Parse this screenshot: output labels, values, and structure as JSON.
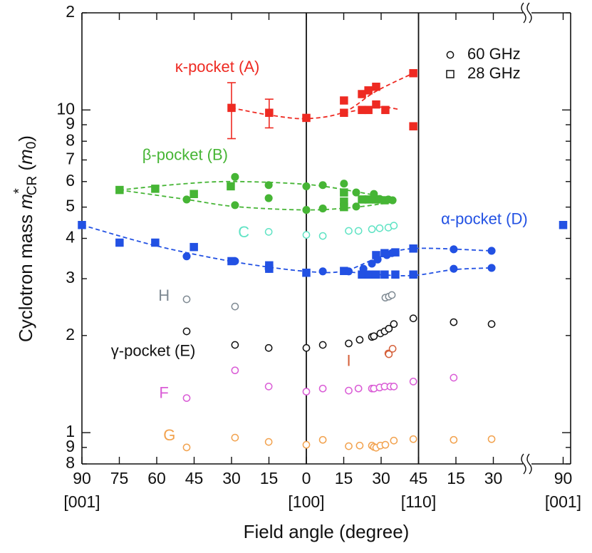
{
  "chart_data": {
    "type": "scatter",
    "log_y": true,
    "xlabel": "Field angle (degree)",
    "ylabel": {
      "text": "Cyclotron mass ",
      "symbol": "m",
      "superscript": "*",
      "subscript": "CR",
      "unit_open": " (",
      "unit": "m",
      "unit_subscript": "0",
      "unit_close": ")"
    },
    "xlim": [
      0,
      196
    ],
    "ylim": [
      0.8,
      20
    ],
    "xticks": [
      {
        "value": 0,
        "label": "90"
      },
      {
        "value": 15,
        "label": "75"
      },
      {
        "value": 30,
        "label": "60"
      },
      45,
      {
        "value": 60,
        "label": "30"
      },
      {
        "value": 75,
        "label": "15"
      },
      {
        "value": 90,
        "label": "0"
      },
      {
        "value": 105,
        "label": "15"
      },
      {
        "value": 120,
        "label": "30"
      },
      {
        "value": 135,
        "label": "45"
      },
      {
        "value": 150,
        "label": "15"
      },
      {
        "value": 165,
        "label": "30"
      },
      {
        "value": 193,
        "label": "90"
      }
    ],
    "xtick_sublabels": [
      {
        "value": 0,
        "label": "[001]"
      },
      {
        "value": 90,
        "label": "[100]"
      },
      {
        "value": 135,
        "label": "[110]"
      },
      {
        "value": 193,
        "label": "[001]"
      }
    ],
    "yticks": [
      {
        "value": 0.8,
        "label": "8"
      },
      {
        "value": 0.9,
        "label": "9"
      },
      1,
      2,
      3,
      4,
      5,
      6,
      7,
      8,
      9,
      10,
      {
        "value": 20,
        "label": "2"
      }
    ],
    "reference_lines": [
      90,
      135
    ],
    "legend": [
      {
        "label": "60 GHz",
        "marker": "circle"
      },
      {
        "label": "28 GHz",
        "marker": "square"
      }
    ],
    "legend_position": "upper right",
    "series": [
      {
        "color": "#ee2a22",
        "marker": "square",
        "filled": true,
        "x": [
          60,
          75.1,
          90,
          105.1,
          105.1,
          112.3,
          114.9,
          118,
          112.3,
          114.9,
          118,
          121.7,
          132.9,
          132.9
        ],
        "values": [
          10.15,
          9.8,
          9.45,
          9.8,
          10.7,
          11.2,
          11.5,
          11.8,
          10.0,
          10.0,
          10.4,
          10.0,
          13.0,
          8.9
        ],
        "errors": [
          2.0,
          1.0,
          null,
          null,
          null,
          null,
          null,
          null,
          null,
          null,
          null,
          null,
          null,
          null
        ]
      },
      {
        "color": "#46b535",
        "marker": "square",
        "filled": true,
        "x": [
          15.1,
          29.4,
          44.9,
          59.7,
          105.1,
          105.1,
          105.1,
          112.3,
          115,
          118,
          121.4
        ],
        "values": [
          5.65,
          5.7,
          5.49,
          5.8,
          5.55,
          5.2,
          5.0,
          5.28,
          5.28,
          5.28,
          5.25
        ]
      },
      {
        "color": "#46b535",
        "marker": "circle",
        "filled": true,
        "x": [
          42,
          61.4,
          61.4,
          74.9,
          74.9,
          90,
          90,
          96.6,
          96.6,
          105.1,
          110,
          110,
          116.3,
          117.1,
          119.4,
          122.9,
          124.6
        ],
        "values": [
          5.28,
          6.2,
          5.07,
          5.85,
          5.33,
          5.8,
          4.9,
          5.85,
          4.95,
          5.91,
          5.55,
          5.02,
          5.28,
          5.49,
          5.3,
          5.28,
          5.25
        ]
      },
      {
        "color": "#2251e3",
        "marker": "square",
        "filled": true,
        "x": [
          0,
          15.1,
          29.4,
          44.9,
          60,
          75.1,
          75.1,
          90,
          105.1,
          112.3,
          115,
          118,
          121.4,
          125.7,
          118,
          121.4,
          125.7,
          132.9,
          132.9,
          193
        ],
        "values": [
          4.4,
          3.88,
          3.88,
          3.76,
          3.4,
          3.3,
          3.22,
          3.13,
          3.17,
          3.09,
          3.09,
          3.09,
          3.09,
          3.09,
          3.55,
          3.6,
          3.62,
          3.72,
          3.09,
          4.4
        ]
      },
      {
        "color": "#2251e3",
        "marker": "circle",
        "filled": true,
        "x": [
          42,
          61.4,
          74.9,
          96.6,
          107,
          112.9,
          116.3,
          118.6,
          122.3,
          124.3,
          149.1,
          149.1,
          164.3,
          164.3
        ],
        "values": [
          3.52,
          3.4,
          3.22,
          3.16,
          3.16,
          3.22,
          3.34,
          3.44,
          3.55,
          3.6,
          3.7,
          3.22,
          3.66,
          3.24
        ]
      },
      {
        "color": "#5fe3c4",
        "marker": "circle",
        "filled": false,
        "x": [
          74.9,
          90,
          96.6,
          107,
          110.9,
          116.3,
          119.4,
          122.9,
          125.1
        ],
        "values": [
          4.19,
          4.1,
          4.07,
          4.22,
          4.22,
          4.27,
          4.3,
          4.32,
          4.38
        ]
      },
      {
        "color": "#7f8a93",
        "marker": "circle",
        "filled": false,
        "x": [
          42,
          61.4,
          121.7,
          123.1,
          124.3
        ],
        "values": [
          2.59,
          2.46,
          2.62,
          2.64,
          2.67
        ]
      },
      {
        "color": "#111111",
        "marker": "circle",
        "filled": false,
        "x": [
          42,
          61.4,
          74.9,
          90,
          96.6,
          107,
          111.4,
          116.3,
          117.1,
          119.7,
          121.4,
          123.1,
          125.1,
          132.9,
          149.1,
          164.3
        ],
        "values": [
          2.06,
          1.87,
          1.83,
          1.83,
          1.87,
          1.89,
          1.94,
          1.98,
          1.99,
          2.03,
          2.06,
          2.1,
          2.17,
          2.26,
          2.2,
          2.17
        ]
      },
      {
        "color": "#d5603a",
        "marker": "circle",
        "filled": false,
        "x": [
          122.9,
          124.6,
          123.1
        ],
        "values": [
          1.76,
          1.82,
          1.75
        ]
      },
      {
        "color": "#da5cd6",
        "marker": "circle",
        "filled": false,
        "x": [
          42,
          61.4,
          74.9,
          90,
          96.6,
          107,
          110.9,
          116.3,
          117.1,
          119.4,
          121.4,
          123.7,
          125.1,
          132.9,
          149.1
        ],
        "values": [
          1.28,
          1.56,
          1.39,
          1.34,
          1.37,
          1.35,
          1.37,
          1.37,
          1.37,
          1.38,
          1.39,
          1.39,
          1.39,
          1.44,
          1.48
        ]
      },
      {
        "color": "#f2a24e",
        "marker": "circle",
        "filled": false,
        "x": [
          42,
          61.4,
          74.9,
          90,
          96.6,
          107,
          111.4,
          116.3,
          117.1,
          118,
          119.7,
          121.7,
          125.1,
          132.9,
          149.1,
          164.3
        ],
        "values": [
          0.9,
          0.965,
          0.936,
          0.917,
          0.95,
          0.908,
          0.912,
          0.912,
          0.903,
          0.898,
          0.912,
          0.917,
          0.945,
          0.955,
          0.95,
          0.955
        ]
      }
    ],
    "curves": [
      {
        "color": "#ee2a22",
        "x": [
          60,
          75.1,
          90,
          105.1,
          117.7,
          132.9
        ],
        "values": [
          10.15,
          9.65,
          9.4,
          9.85,
          11.4,
          13.0
        ]
      },
      {
        "color": "#ee2a22",
        "x": [
          105.1,
          118.6,
          127.1
        ],
        "values": [
          9.8,
          10.2,
          10.05
        ]
      },
      {
        "color": "#46b535",
        "x": [
          15.1,
          41.4,
          61.4,
          90,
          110,
          125.7
        ],
        "values": [
          5.65,
          5.91,
          6.0,
          5.88,
          5.58,
          5.28
        ]
      },
      {
        "color": "#46b535",
        "x": [
          15.1,
          42,
          61.4,
          90,
          110,
          125.7
        ],
        "values": [
          5.65,
          5.28,
          5.02,
          4.9,
          5.0,
          5.2
        ]
      },
      {
        "color": "#2251e3",
        "x": [
          0,
          29.4,
          61.4,
          90,
          105.1,
          118.6,
          132.9,
          164.3
        ],
        "values": [
          4.4,
          3.8,
          3.38,
          3.16,
          3.17,
          3.48,
          3.72,
          3.66
        ]
      },
      {
        "color": "#2251e3",
        "x": [
          105.1,
          118.6,
          132.9,
          149.1,
          164.3
        ],
        "values": [
          3.16,
          3.09,
          3.07,
          3.2,
          3.24
        ]
      }
    ],
    "annotations": [
      {
        "text": "κ-pocket (A)",
        "color": "#ee2a22",
        "x": 54.3,
        "y": 13.5
      },
      {
        "text": "β-pocket (B)",
        "color": "#46b535",
        "x": 41.4,
        "y": 7.2
      },
      {
        "text": "α-pocket (D)",
        "color": "#2251e3",
        "x": 161.4,
        "y": 4.56
      },
      {
        "text": "C",
        "color": "#5fe3c4",
        "x": 64.9,
        "y": 4.15
      },
      {
        "text": "H",
        "color": "#7f8a93",
        "x": 32.9,
        "y": 2.64
      },
      {
        "text": "γ-pocket (E)",
        "color": "#111111",
        "x": 28.6,
        "y": 1.78
      },
      {
        "text": "I",
        "color": "#d5603a",
        "x": 107,
        "y": 1.66
      },
      {
        "text": "F",
        "color": "#da5cd6",
        "x": 32.9,
        "y": 1.32
      },
      {
        "text": "G",
        "color": "#f2a24e",
        "x": 35.1,
        "y": 0.975
      }
    ]
  }
}
